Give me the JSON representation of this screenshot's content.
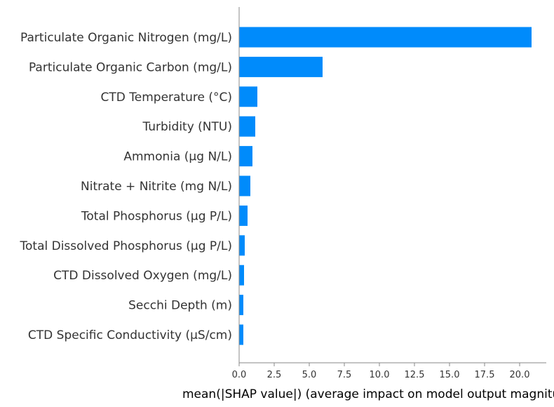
{
  "chart_data": {
    "type": "bar",
    "orientation": "horizontal",
    "categories": [
      "Particulate Organic Nitrogen (mg/L)",
      "Particulate Organic Carbon (mg/L)",
      "CTD Temperature (°C)",
      "Turbidity (NTU)",
      "Ammonia (µg N/L)",
      "Nitrate + Nitrite (mg N/L)",
      "Total Phosphorus (µg P/L)",
      "Total Dissolved Phosphorus (µg P/L)",
      "CTD Dissolved Oxygen (mg/L)",
      "Secchi Depth (m)",
      "CTD Specific Conductivity (µS/cm)"
    ],
    "values": [
      20.85,
      5.95,
      1.3,
      1.15,
      0.95,
      0.8,
      0.6,
      0.4,
      0.35,
      0.3,
      0.3
    ],
    "xlabel": "mean(|SHAP value|) (average impact on model output magnitude)",
    "xticks": [
      "0.0",
      "2.5",
      "5.0",
      "7.5",
      "10.0",
      "12.5",
      "15.0",
      "17.5",
      "20.0"
    ],
    "xtick_values": [
      0,
      2.5,
      5,
      7.5,
      10,
      12.5,
      15,
      17.5,
      20
    ],
    "xlim": [
      0,
      21.9
    ],
    "grid": false,
    "bar_color": "#008bfb"
  }
}
